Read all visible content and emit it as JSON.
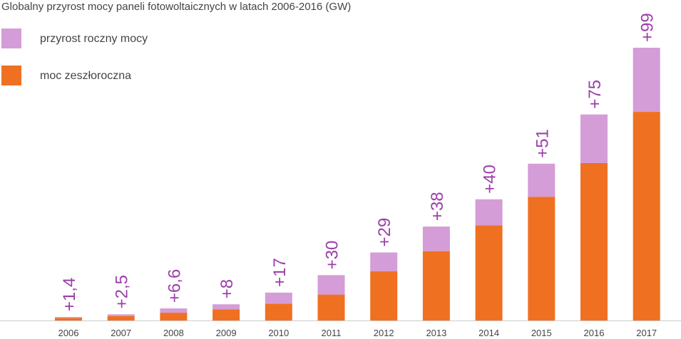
{
  "chart_data": {
    "type": "stacked-bar",
    "title": "Globalny przyrost mocy paneli fotowoltaicznych w latach 2006-2016 (GW)",
    "categories": [
      "2006",
      "2007",
      "2008",
      "2009",
      "2010",
      "2011",
      "2012",
      "2013",
      "2014",
      "2015",
      "2016",
      "2017"
    ],
    "series": [
      {
        "name": "moc zeszłoroczna",
        "color": "#f07022",
        "values": [
          4,
          7,
          12,
          17,
          26,
          40,
          76,
          107,
          147,
          191,
          243,
          322
        ]
      },
      {
        "name": "przyrost roczny mocy",
        "color": "#d49dd7",
        "values": [
          1.4,
          2.5,
          6.6,
          8,
          17,
          30,
          29,
          38,
          40,
          51,
          75,
          99
        ],
        "value_labels": [
          "+1,4",
          "+2,5",
          "+6,6",
          "+8",
          "+17",
          "+30",
          "+29",
          "+38",
          "+40",
          "+51",
          "+75",
          "+99"
        ]
      }
    ]
  }
}
